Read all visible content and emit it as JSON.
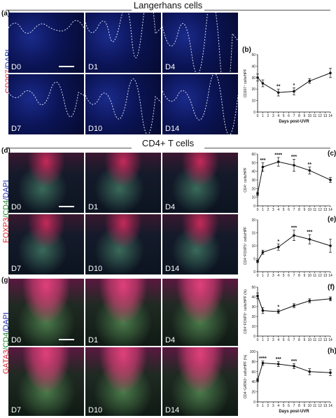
{
  "figure": {
    "sections": [
      {
        "title": "Langerhans cells"
      },
      {
        "title": "CD4+ T cells"
      }
    ],
    "panels": [
      {
        "id": "a",
        "label": "(a)",
        "stain": [
          {
            "text": "CD207",
            "color": "red"
          },
          {
            "text": "/DAPI",
            "color": "blue"
          }
        ],
        "days": [
          "D0",
          "D1",
          "D4",
          "D7",
          "D10",
          "D14"
        ]
      },
      {
        "id": "d",
        "label": "(d)",
        "stain": [
          {
            "text": "FOXP3",
            "color": "red"
          },
          {
            "text": "/CD4",
            "color": "green"
          },
          {
            "text": "/DAPI",
            "color": "blue"
          }
        ],
        "days": [
          "D0",
          "D1",
          "D4",
          "D7",
          "D10",
          "D14"
        ]
      },
      {
        "id": "g",
        "label": "(g)",
        "stain": [
          {
            "text": "GATA3",
            "color": "red"
          },
          {
            "text": "/CD4",
            "color": "green"
          },
          {
            "text": "/DAPI",
            "color": "blue"
          }
        ],
        "days": [
          "D0",
          "D1",
          "D4",
          "D7",
          "D10",
          "D14"
        ]
      }
    ]
  },
  "chart_data": [
    {
      "id": "b",
      "panel_label": "(b)",
      "type": "line",
      "title": "",
      "xlabel": "Days post-UVR",
      "ylabel": "CD207⁺ cells/HPF",
      "x_ticks": [
        0,
        1,
        2,
        3,
        4,
        5,
        6,
        7,
        8,
        9,
        10,
        11,
        12,
        13,
        14
      ],
      "y_ticks": [
        0,
        10,
        20,
        30,
        40,
        50
      ],
      "ylim": [
        0,
        50
      ],
      "xlim": [
        0,
        14
      ],
      "x": [
        0,
        1,
        4,
        7,
        10,
        14
      ],
      "y": [
        30,
        25,
        17,
        18,
        27,
        34
      ],
      "err": [
        3,
        3,
        3,
        3,
        2,
        4
      ],
      "sig": [
        "",
        "",
        "**",
        "*",
        "",
        ""
      ]
    },
    {
      "id": "c",
      "panel_label": "(c)",
      "type": "line",
      "title": "",
      "xlabel": "",
      "ylabel": "CD4⁺ cells/HPF",
      "x_ticks": [
        0,
        1,
        2,
        3,
        4,
        5,
        6,
        7,
        8,
        9,
        10,
        11,
        12,
        13,
        14
      ],
      "y_ticks": [
        0,
        10,
        20,
        30,
        40,
        50,
        60
      ],
      "ylim": [
        0,
        60
      ],
      "xlim": [
        0,
        14
      ],
      "x": [
        0,
        1,
        4,
        7,
        10,
        14
      ],
      "y": [
        14,
        45,
        51,
        47,
        41,
        30
      ],
      "err": [
        2,
        5,
        5,
        7,
        4,
        3
      ],
      "sig": [
        "",
        "***",
        "****",
        "***",
        "**",
        ""
      ]
    },
    {
      "id": "e",
      "panel_label": "(e)",
      "type": "line",
      "title": "",
      "xlabel": "",
      "ylabel": "CD4⁺FOXP3⁺ cells/HPF",
      "x_ticks": [
        0,
        1,
        2,
        3,
        4,
        5,
        6,
        7,
        8,
        9,
        10,
        11,
        12,
        13,
        14
      ],
      "y_ticks": [
        0,
        5,
        10,
        15,
        20
      ],
      "ylim": [
        0,
        20
      ],
      "xlim": [
        0,
        14
      ],
      "x": [
        0,
        1,
        4,
        7,
        10,
        14
      ],
      "y": [
        4,
        7.5,
        9.5,
        14,
        12.5,
        10
      ],
      "err": [
        0.5,
        0.8,
        1.2,
        2,
        1.8,
        2.5
      ],
      "sig": [
        "",
        "",
        "*",
        "***",
        "***",
        ""
      ]
    },
    {
      "id": "f",
      "panel_label": "(f)",
      "type": "line",
      "title": "",
      "xlabel": "",
      "ylabel": "CD4⁺FOXP3⁺ cells/HPF (%)",
      "x_ticks": [
        0,
        1,
        2,
        3,
        4,
        5,
        6,
        7,
        8,
        9,
        10,
        11,
        12,
        13,
        14
      ],
      "y_ticks": [
        0,
        10,
        20,
        30,
        40,
        50
      ],
      "ylim": [
        0,
        50
      ],
      "xlim": [
        0,
        14
      ],
      "x": [
        0,
        1,
        4,
        7,
        10,
        14
      ],
      "y": [
        41,
        26,
        25,
        31,
        36,
        38
      ],
      "err": [
        3,
        3,
        2,
        2,
        2,
        2
      ],
      "sig": [
        "",
        "",
        "*",
        "",
        "",
        ""
      ]
    },
    {
      "id": "h",
      "panel_label": "(h)",
      "type": "line",
      "title": "",
      "xlabel": "Days post-UVR",
      "ylabel": "CD4⁺GATA3⁺ cells/HPF (%)",
      "x_ticks": [
        0,
        1,
        2,
        3,
        4,
        5,
        6,
        7,
        8,
        9,
        10,
        11,
        12,
        13,
        14
      ],
      "y_ticks": [
        0,
        20,
        40,
        60,
        80,
        100
      ],
      "ylim": [
        0,
        100
      ],
      "xlim": [
        0,
        14
      ],
      "x": [
        0,
        1,
        4,
        7,
        10,
        14
      ],
      "y": [
        43,
        77,
        75,
        71,
        60,
        58
      ],
      "err": [
        3,
        4,
        5,
        5,
        6,
        6
      ],
      "sig": [
        "",
        "****",
        "***",
        "***",
        "",
        ""
      ]
    }
  ]
}
